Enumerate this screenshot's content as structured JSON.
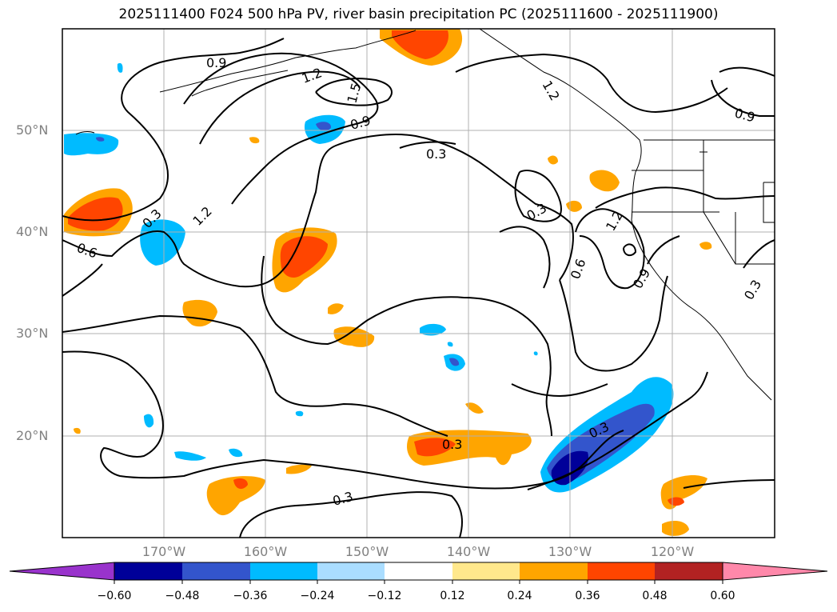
{
  "title": "2025111400 F024 500 hPa PV, river basin precipitation PC (2025111600 - 2025111900)",
  "map": {
    "lat_labels": [
      "50°N",
      "40°N",
      "30°N",
      "20°N"
    ],
    "lon_labels": [
      "170°W",
      "160°W",
      "150°W",
      "140°W",
      "130°W",
      "120°W"
    ],
    "contour_labels": [
      "0.9",
      "1.2",
      "1.5",
      "0.9",
      "0.3",
      "0.3",
      "1.2",
      "0.6",
      "1.2",
      "0.3",
      "0.6",
      "1.2",
      "0.9",
      "0.9",
      "0.3",
      "0.3",
      "0.3",
      "0.3"
    ],
    "colors": {
      "coast": "#000000",
      "contour": "#000000",
      "grid": "#b0b0b0"
    }
  },
  "colorbar": {
    "ticks": [
      "−0.60",
      "−0.48",
      "−0.36",
      "−0.24",
      "−0.12",
      "0.12",
      "0.24",
      "0.36",
      "0.48",
      "0.60"
    ],
    "colors": [
      "#9933cc",
      "#000099",
      "#3355cc",
      "#00bbff",
      "#aaddff",
      "#ffffff",
      "#ffe88c",
      "#ffa500",
      "#ff4500",
      "#b22222",
      "#ff88aa"
    ]
  }
}
